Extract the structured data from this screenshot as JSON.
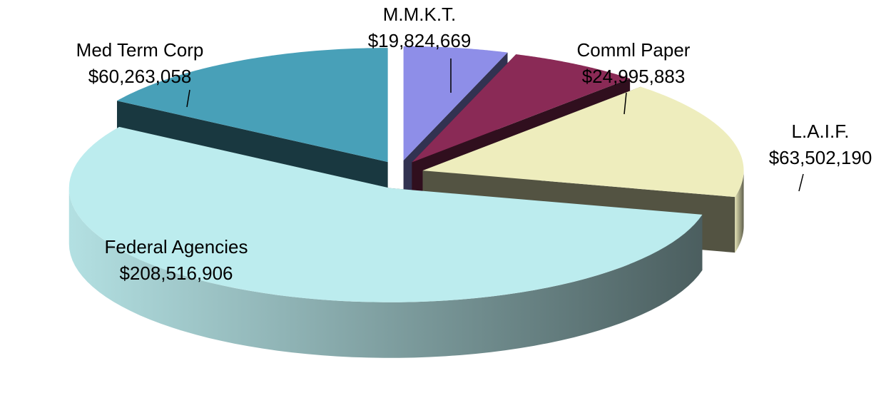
{
  "chart_data": {
    "type": "pie3d",
    "categories": [
      "M.M.K.T.",
      "Comml Paper",
      "L.A.I.F.",
      "Federal Agencies",
      "Med Term Corp"
    ],
    "values": [
      19824669,
      24995883,
      63502190,
      208516906,
      60263058
    ],
    "value_labels": [
      "$19,824,669",
      "$24,995,883",
      "$63,502,190",
      "$208,516,906",
      "$60,263,058"
    ],
    "colors": [
      "#8e8ee8",
      "#8a2a56",
      "#eeedbd",
      "#bcecee",
      "#48a0b8"
    ]
  }
}
